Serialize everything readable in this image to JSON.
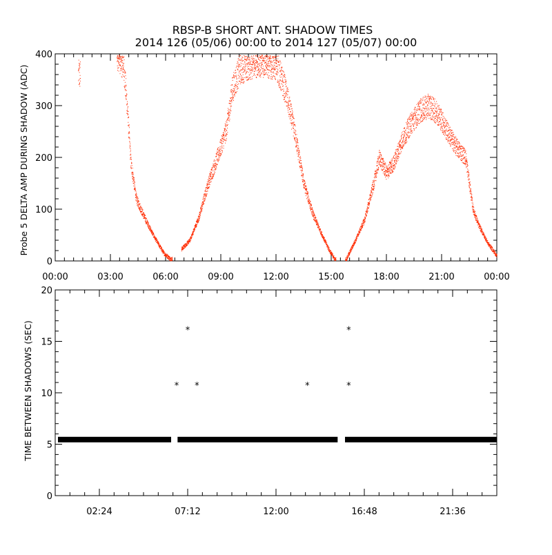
{
  "title_line1": "RBSP-B SHORT ANT. SHADOW TIMES",
  "title_line2": "2014 126 (05/06) 00:00 to 2014 127 (05/07) 00:00",
  "colors": {
    "top_points": "#ff2a00",
    "bottom_points": "#000000",
    "axes": "#000000"
  },
  "chart_data": [
    {
      "type": "scatter",
      "ylabel": "Probe 5 DELTA AMP DURING SHADOW (ADC)",
      "xlabel": "",
      "x_unit": "hours since 2014-05-06 00:00",
      "xlim": [
        0,
        24
      ],
      "ylim": [
        0,
        400
      ],
      "x_tick_labels": [
        "00:00",
        "03:00",
        "06:00",
        "09:00",
        "12:00",
        "15:00",
        "18:00",
        "21:00",
        "00:00"
      ],
      "y_tick_labels": [
        "0",
        "100",
        "200",
        "300",
        "400"
      ],
      "grid": false,
      "series_color": "#ff2a00",
      "profile": {
        "x": [
          1.3,
          3.4,
          3.7,
          3.9,
          4.1,
          4.4,
          4.9,
          5.4,
          5.9,
          6.3,
          6.9,
          7.3,
          7.8,
          8.3,
          8.8,
          9.3,
          9.6,
          10.0,
          10.5,
          11.0,
          11.5,
          12.0,
          12.5,
          13.0,
          13.5,
          14.0,
          14.5,
          14.9,
          15.2,
          15.8,
          16.3,
          16.8,
          17.3,
          17.6,
          18.0,
          18.4,
          18.8,
          19.3,
          19.8,
          20.3,
          20.8,
          21.3,
          21.8,
          22.3,
          22.7,
          23.0,
          23.5,
          24.0
        ],
        "y": [
          360,
          400,
          380,
          300,
          190,
          120,
          80,
          45,
          15,
          3,
          25,
          40,
          85,
          150,
          200,
          255,
          330,
          370,
          380,
          385,
          385,
          380,
          330,
          250,
          150,
          90,
          50,
          20,
          3,
          3,
          40,
          80,
          150,
          200,
          170,
          190,
          230,
          265,
          290,
          300,
          285,
          250,
          220,
          200,
          100,
          70,
          35,
          10
        ]
      }
    },
    {
      "type": "scatter",
      "ylabel": "TIME BETWEEN SHADOWS (SEC)",
      "xlabel": "",
      "x_unit": "hours since 2014-05-06 00:00",
      "xlim": [
        0,
        24
      ],
      "ylim": [
        0,
        20
      ],
      "x_tick_labels": [
        "02:24",
        "07:12",
        "12:00",
        "16:48",
        "21:36"
      ],
      "y_tick_labels": [
        "0",
        "5",
        "10",
        "15",
        "20"
      ],
      "grid": false,
      "series_color": "#000000",
      "baseline": {
        "y": 5.45,
        "segments": [
          [
            0.15,
            6.3
          ],
          [
            6.65,
            15.35
          ],
          [
            15.75,
            24.0
          ]
        ]
      },
      "outliers": {
        "x": [
          6.6,
          7.2,
          7.7,
          13.7,
          15.95,
          15.95
        ],
        "y": [
          10.8,
          16.2,
          10.8,
          10.8,
          16.2,
          10.8
        ]
      }
    }
  ]
}
